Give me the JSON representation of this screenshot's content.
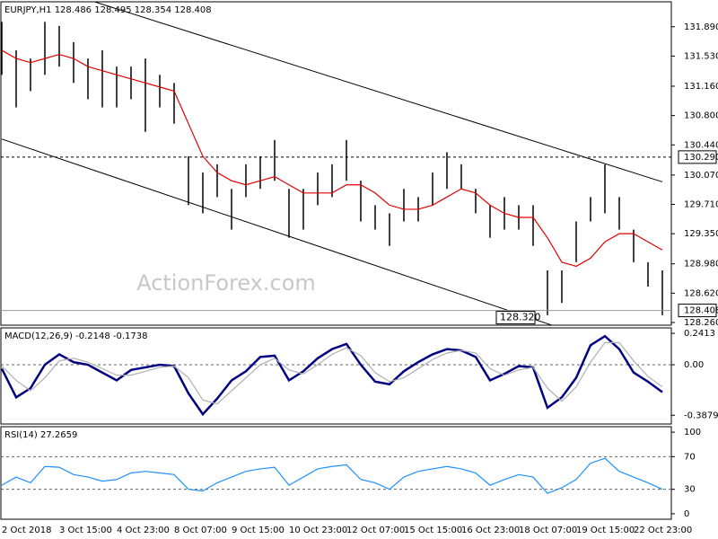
{
  "chart_data": [
    {
      "type": "hilo",
      "title": "EURJPY,H1  128.486 128.495 128.354 128.408",
      "watermark": "ActionForex.com",
      "ylim": [
        128.227,
        132.196
      ],
      "yticks": [
        {
          "value": 131.89,
          "label": "131.890"
        },
        {
          "value": 131.53,
          "label": "131.530"
        },
        {
          "value": 131.16,
          "label": "131.160"
        },
        {
          "value": 130.8,
          "label": "130.800"
        },
        {
          "value": 130.44,
          "label": "130.440"
        },
        {
          "value": 130.07,
          "label": "130.070"
        },
        {
          "value": 129.71,
          "label": "129.710"
        },
        {
          "value": 129.35,
          "label": "129.350"
        },
        {
          "value": 128.98,
          "label": "128.980"
        },
        {
          "value": 128.62,
          "label": "128.620"
        },
        {
          "value": 128.26,
          "label": "128.260"
        }
      ],
      "high": [
        131.95,
        131.6,
        131.5,
        131.95,
        131.9,
        131.7,
        131.5,
        131.6,
        131.4,
        131.4,
        131.5,
        131.3,
        131.2,
        130.3,
        130.1,
        130.2,
        129.9,
        130.2,
        130.3,
        130.5,
        129.9,
        129.9,
        130.1,
        130.2,
        130.5,
        130.0,
        129.7,
        129.6,
        129.9,
        129.8,
        130.1,
        130.35,
        130.2,
        129.9,
        129.7,
        129.8,
        129.7,
        129.7,
        128.9,
        128.9,
        129.5,
        129.8,
        130.2,
        129.8,
        129.4,
        129.0,
        128.9
      ],
      "low": [
        131.3,
        130.9,
        131.1,
        131.3,
        131.4,
        131.2,
        131.0,
        130.9,
        130.9,
        131.0,
        130.6,
        130.9,
        130.7,
        129.7,
        129.6,
        129.8,
        129.4,
        129.8,
        129.9,
        130.0,
        129.3,
        129.4,
        129.7,
        129.8,
        130.0,
        129.5,
        129.4,
        129.2,
        129.5,
        129.5,
        129.7,
        129.9,
        129.9,
        129.6,
        129.3,
        129.4,
        129.4,
        129.2,
        128.35,
        128.5,
        129.0,
        129.5,
        129.6,
        129.4,
        129.0,
        128.7,
        128.35
      ],
      "lines": [
        {
          "color": "#e00000",
          "values": [
            131.6,
            131.5,
            131.45,
            131.5,
            131.55,
            131.5,
            131.4,
            131.35,
            131.3,
            131.25,
            131.2,
            131.15,
            131.1,
            130.7,
            130.3,
            130.1,
            130.0,
            129.95,
            130.0,
            130.05,
            129.95,
            129.85,
            129.85,
            129.85,
            129.95,
            129.95,
            129.85,
            129.7,
            129.65,
            129.65,
            129.7,
            129.8,
            129.9,
            129.85,
            129.7,
            129.6,
            129.55,
            129.55,
            129.3,
            129.0,
            128.95,
            129.05,
            129.25,
            129.35,
            129.35,
            129.25,
            129.15
          ]
        }
      ],
      "trendlines": [
        {
          "values": [
            132.557,
            129.986
          ]
        },
        {
          "values": [
            130.511,
            127.768
          ]
        }
      ],
      "annotations": [
        {
          "label": "130.290",
          "value": 130.29,
          "line": "dashed"
        },
        {
          "label": "128.408",
          "value": 128.408,
          "line": "solid"
        },
        {
          "label": "128.320",
          "value": 128.32
        }
      ]
    },
    {
      "type": "line",
      "title": "MACD(12,26,9) -0.2148 -0.1738",
      "ylim": [
        -0.455,
        0.283
      ],
      "yticks": [
        0.2413,
        {
          "value": 0,
          "label": "0.00"
        },
        -0.3879
      ],
      "hlines": [
        0
      ],
      "series": [
        {
          "color": "#000080",
          "values": [
            -0.03,
            -0.25,
            -0.18,
            0.0,
            0.08,
            0.02,
            0.0,
            -0.06,
            -0.12,
            -0.04,
            -0.02,
            0.0,
            -0.01,
            -0.22,
            -0.38,
            -0.26,
            -0.12,
            -0.05,
            0.06,
            0.07,
            -0.12,
            -0.05,
            0.05,
            0.12,
            0.16,
            0.0,
            -0.13,
            -0.15,
            -0.05,
            0.02,
            0.08,
            0.12,
            0.11,
            0.06,
            -0.12,
            -0.07,
            -0.01,
            -0.02,
            -0.33,
            -0.25,
            -0.1,
            0.15,
            0.22,
            0.12,
            -0.06,
            -0.13,
            -0.21
          ]
        },
        {
          "color": "#b0b0b0",
          "values": [
            -0.01,
            -0.12,
            -0.2,
            -0.1,
            0.03,
            0.05,
            0.02,
            -0.03,
            -0.08,
            -0.08,
            -0.05,
            -0.02,
            -0.01,
            -0.1,
            -0.27,
            -0.3,
            -0.2,
            -0.1,
            0.0,
            0.05,
            -0.04,
            -0.07,
            0.0,
            0.08,
            0.13,
            0.07,
            -0.06,
            -0.13,
            -0.1,
            -0.03,
            0.04,
            0.09,
            0.11,
            0.09,
            -0.03,
            -0.08,
            -0.04,
            -0.02,
            -0.18,
            -0.28,
            -0.17,
            0.02,
            0.17,
            0.17,
            0.03,
            -0.09,
            -0.17
          ]
        }
      ]
    },
    {
      "type": "line",
      "title": "RSI(14) 27.2659",
      "ylim": [
        -6.7,
        106.7
      ],
      "yticks": [
        100,
        70,
        30,
        0
      ],
      "hlines": [
        70,
        30
      ],
      "series": [
        {
          "color": "#1e90ff",
          "values": [
            35,
            45,
            38,
            58,
            57,
            48,
            45,
            40,
            42,
            50,
            52,
            50,
            48,
            30,
            28,
            38,
            45,
            52,
            55,
            57,
            35,
            45,
            55,
            58,
            60,
            42,
            38,
            30,
            45,
            52,
            55,
            58,
            55,
            50,
            35,
            42,
            48,
            45,
            25,
            32,
            42,
            62,
            68,
            52,
            45,
            38,
            30
          ]
        }
      ],
      "categories": [
        "2 Oct 2018",
        null,
        null,
        null,
        "3 Oct 15:00",
        null,
        null,
        null,
        "4 Oct 23:00",
        null,
        null,
        null,
        "8 Oct 07:00",
        null,
        null,
        null,
        "9 Oct 15:00",
        null,
        null,
        null,
        "10 Oct 23:00",
        null,
        null,
        null,
        "12 Oct 07:00",
        null,
        null,
        null,
        "15 Oct 15:00",
        null,
        null,
        null,
        "16 Oct 23:00",
        null,
        null,
        null,
        "18 Oct 07:00",
        null,
        null,
        null,
        "19 Oct 15:00",
        null,
        null,
        null,
        "22 Oct 23:00",
        null,
        null
      ]
    }
  ]
}
